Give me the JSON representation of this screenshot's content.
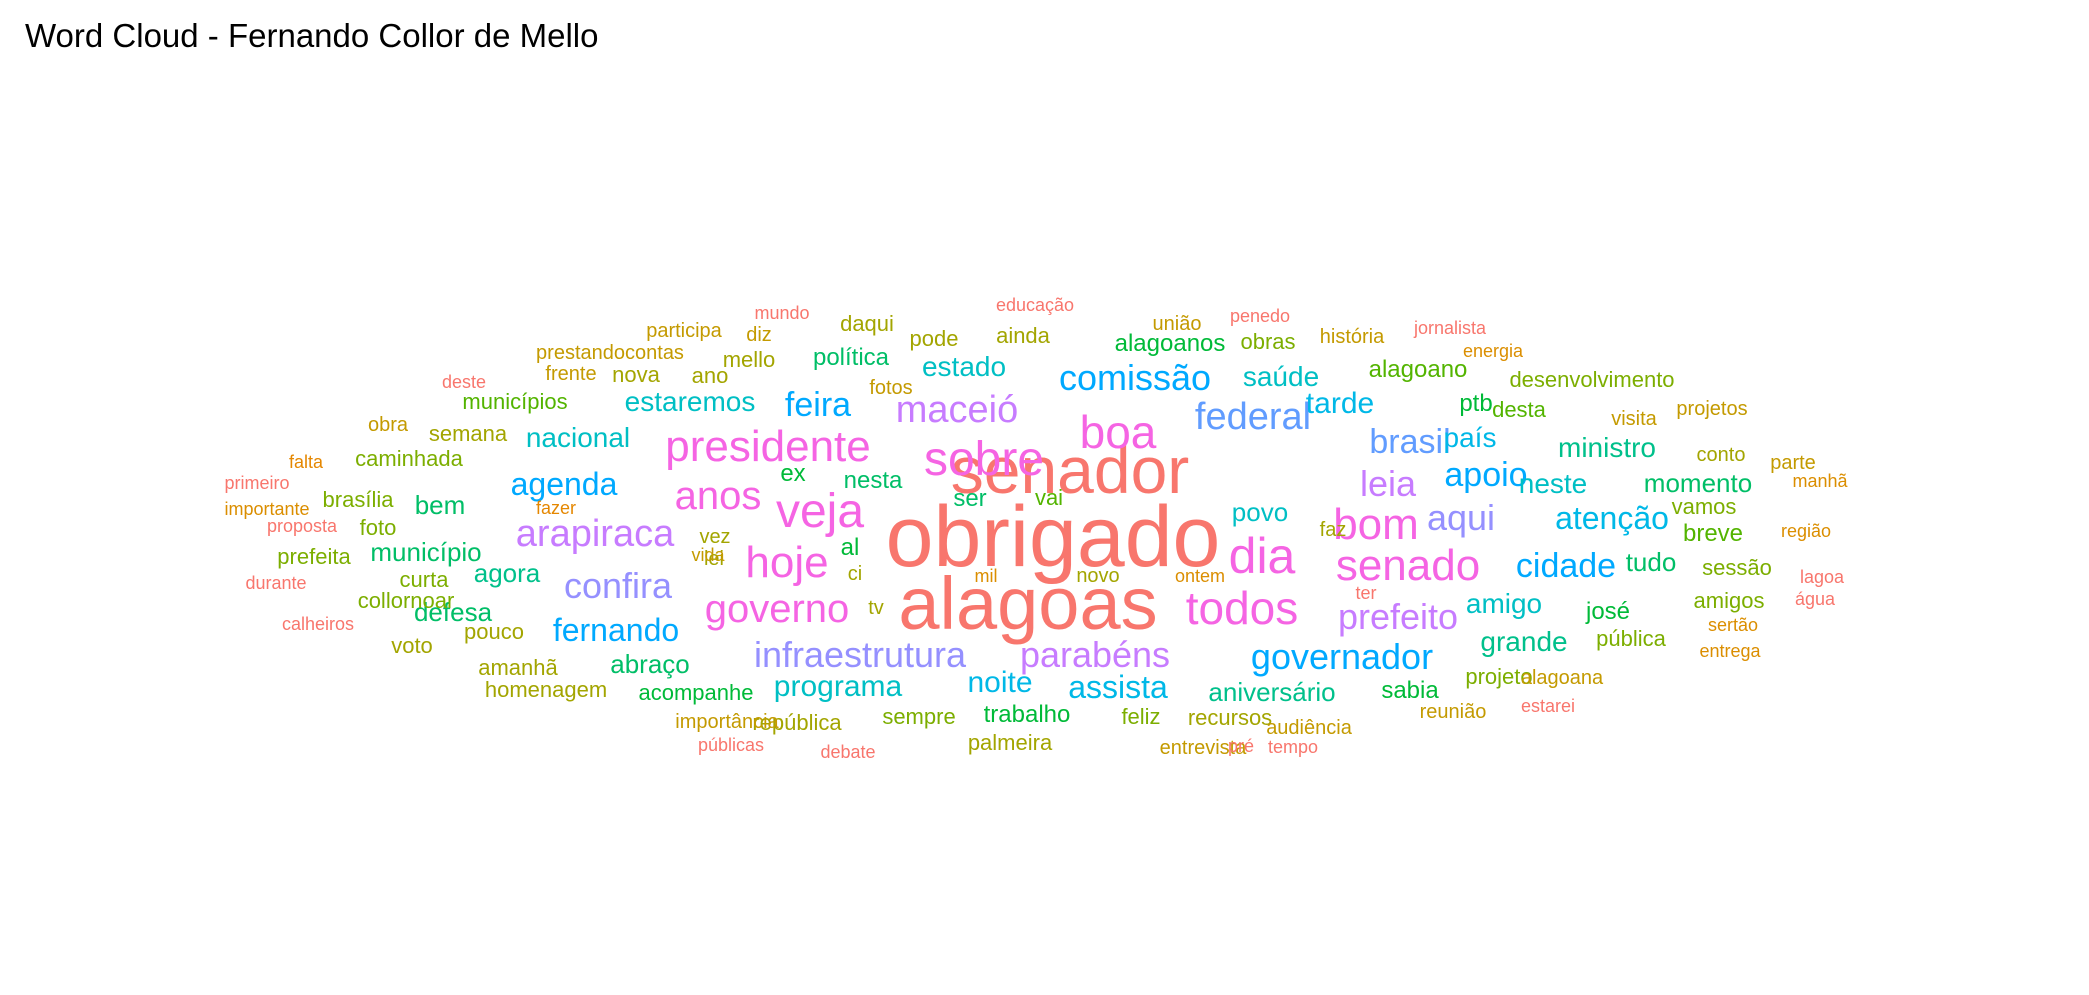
{
  "title": "Word Cloud - Fernando Collor de Mello",
  "words": [
    {
      "text": "obrigado",
      "color": "#F8766D"
    },
    {
      "text": "alagoas",
      "color": "#F8766D"
    },
    {
      "text": "senador",
      "color": "#F8766D"
    },
    {
      "text": "dia",
      "color": "#F564E3"
    },
    {
      "text": "veja",
      "color": "#F564E3"
    },
    {
      "text": "hoje",
      "color": "#F564E3"
    },
    {
      "text": "sobre",
      "color": "#F564E3"
    },
    {
      "text": "boa",
      "color": "#F564E3"
    },
    {
      "text": "senado",
      "color": "#F564E3"
    },
    {
      "text": "todos",
      "color": "#F564E3"
    },
    {
      "text": "presidente",
      "color": "#F564E3"
    },
    {
      "text": "bom",
      "color": "#F564E3"
    },
    {
      "text": "governo",
      "color": "#F564E3"
    },
    {
      "text": "anos",
      "color": "#F564E3"
    },
    {
      "text": "arapiraca",
      "color": "#C77CFF"
    },
    {
      "text": "parabéns",
      "color": "#C77CFF"
    },
    {
      "text": "maceió",
      "color": "#C77CFF"
    },
    {
      "text": "prefeito",
      "color": "#C77CFF"
    },
    {
      "text": "leia",
      "color": "#C77CFF"
    },
    {
      "text": "infraestrutura",
      "color": "#9590FF"
    },
    {
      "text": "confira",
      "color": "#9590FF"
    },
    {
      "text": "aqui",
      "color": "#9590FF"
    },
    {
      "text": "federal",
      "color": "#619CFF"
    },
    {
      "text": "brasil",
      "color": "#619CFF"
    },
    {
      "text": "governador",
      "color": "#00A9FF"
    },
    {
      "text": "comissão",
      "color": "#00A9FF"
    },
    {
      "text": "apoio",
      "color": "#00A9FF"
    },
    {
      "text": "cidade",
      "color": "#00A9FF"
    },
    {
      "text": "feira",
      "color": "#00A9FF"
    },
    {
      "text": "agenda",
      "color": "#00A9FF"
    },
    {
      "text": "fernando",
      "color": "#00A9FF"
    },
    {
      "text": "atenção",
      "color": "#00B8E7"
    },
    {
      "text": "tarde",
      "color": "#00B8E7"
    },
    {
      "text": "assista",
      "color": "#00B8E7"
    },
    {
      "text": "país",
      "color": "#00B8E7"
    },
    {
      "text": "noite",
      "color": "#00B8E7"
    },
    {
      "text": "programa",
      "color": "#00BFC4"
    },
    {
      "text": "amigo",
      "color": "#00BFC4"
    },
    {
      "text": "estado",
      "color": "#00BFC4"
    },
    {
      "text": "saúde",
      "color": "#00BFC4"
    },
    {
      "text": "estaremos",
      "color": "#00BFC4"
    },
    {
      "text": "nacional",
      "color": "#00BFC4"
    },
    {
      "text": "neste",
      "color": "#00BFC4"
    },
    {
      "text": "povo",
      "color": "#00BFC4"
    },
    {
      "text": "aniversário",
      "color": "#00C08B"
    },
    {
      "text": "grande",
      "color": "#00C08B"
    },
    {
      "text": "ministro",
      "color": "#00C08B"
    },
    {
      "text": "agora",
      "color": "#00C08B"
    },
    {
      "text": "município",
      "color": "#00BE67"
    },
    {
      "text": "bem",
      "color": "#00BE67"
    },
    {
      "text": "defesa",
      "color": "#00BE67"
    },
    {
      "text": "abraço",
      "color": "#00BE67"
    },
    {
      "text": "momento",
      "color": "#00BE67"
    },
    {
      "text": "tudo",
      "color": "#00BE67"
    },
    {
      "text": "nesta",
      "color": "#00BE67"
    },
    {
      "text": "política",
      "color": "#00BE67"
    },
    {
      "text": "ser",
      "color": "#00BE67"
    },
    {
      "text": "ptb",
      "color": "#00BA38"
    },
    {
      "text": "josé",
      "color": "#00BA38"
    },
    {
      "text": "al",
      "color": "#00BA38"
    },
    {
      "text": "ex",
      "color": "#00BA38"
    },
    {
      "text": "alagoanos",
      "color": "#00BA38"
    },
    {
      "text": "trabalho",
      "color": "#00BA38"
    },
    {
      "text": "acompanhe",
      "color": "#00BA38"
    },
    {
      "text": "sabia",
      "color": "#00BA38"
    },
    {
      "text": "breve",
      "color": "#53B400"
    },
    {
      "text": "alagoano",
      "color": "#53B400"
    },
    {
      "text": "desta",
      "color": "#53B400"
    },
    {
      "text": "vai",
      "color": "#53B400"
    },
    {
      "text": "municípios",
      "color": "#53B400"
    },
    {
      "text": "caminhada",
      "color": "#7CAE00"
    },
    {
      "text": "brasília",
      "color": "#7CAE00"
    },
    {
      "text": "foto",
      "color": "#7CAE00"
    },
    {
      "text": "curta",
      "color": "#7CAE00"
    },
    {
      "text": "collornoar",
      "color": "#7CAE00"
    },
    {
      "text": "pública",
      "color": "#7CAE00"
    },
    {
      "text": "sessão",
      "color": "#7CAE00"
    },
    {
      "text": "amigos",
      "color": "#7CAE00"
    },
    {
      "text": "vamos",
      "color": "#7CAE00"
    },
    {
      "text": "projeto",
      "color": "#7CAE00"
    },
    {
      "text": "desenvolvimento",
      "color": "#7CAE00"
    },
    {
      "text": "obras",
      "color": "#7CAE00"
    },
    {
      "text": "sempre",
      "color": "#7CAE00"
    },
    {
      "text": "feliz",
      "color": "#7CAE00"
    },
    {
      "text": "prefeita",
      "color": "#7CAE00"
    },
    {
      "text": "semana",
      "color": "#A3A500"
    },
    {
      "text": "ano",
      "color": "#A3A500"
    },
    {
      "text": "nova",
      "color": "#A3A500"
    },
    {
      "text": "mello",
      "color": "#A3A500"
    },
    {
      "text": "pode",
      "color": "#A3A500"
    },
    {
      "text": "ainda",
      "color": "#A3A500"
    },
    {
      "text": "daqui",
      "color": "#A3A500"
    },
    {
      "text": "pouco",
      "color": "#A3A500"
    },
    {
      "text": "voto",
      "color": "#A3A500"
    },
    {
      "text": "amanhã",
      "color": "#A3A500"
    },
    {
      "text": "homenagem",
      "color": "#A3A500"
    },
    {
      "text": "república",
      "color": "#A3A500"
    },
    {
      "text": "recursos",
      "color": "#A3A500"
    },
    {
      "text": "palmeira",
      "color": "#A3A500"
    },
    {
      "text": "novo",
      "color": "#A3A500"
    },
    {
      "text": "tv",
      "color": "#A3A500"
    },
    {
      "text": "ci",
      "color": "#A3A500"
    },
    {
      "text": "vez",
      "color": "#A3A500"
    },
    {
      "text": "lei",
      "color": "#A3A500"
    },
    {
      "text": "faz",
      "color": "#A3A500"
    },
    {
      "text": "conto",
      "color": "#A3A500"
    },
    {
      "text": "obra",
      "color": "#C49A00"
    },
    {
      "text": "frente",
      "color": "#C49A00"
    },
    {
      "text": "prestandocontas",
      "color": "#C49A00"
    },
    {
      "text": "participa",
      "color": "#C49A00"
    },
    {
      "text": "diz",
      "color": "#C49A00"
    },
    {
      "text": "fotos",
      "color": "#C49A00"
    },
    {
      "text": "união",
      "color": "#C49A00"
    },
    {
      "text": "história",
      "color": "#C49A00"
    },
    {
      "text": "visita",
      "color": "#C49A00"
    },
    {
      "text": "projetos",
      "color": "#C49A00"
    },
    {
      "text": "parte",
      "color": "#C49A00"
    },
    {
      "text": "importância",
      "color": "#C49A00"
    },
    {
      "text": "audiência",
      "color": "#C49A00"
    },
    {
      "text": "entrevista",
      "color": "#C49A00"
    },
    {
      "text": "reunião",
      "color": "#C49A00"
    },
    {
      "text": "alagoana",
      "color": "#C49A00"
    },
    {
      "text": "vida",
      "color": "#C49A00"
    },
    {
      "text": "mil",
      "color": "#DB8E00"
    },
    {
      "text": "ontem",
      "color": "#DB8E00"
    },
    {
      "text": "energia",
      "color": "#DB8E00"
    },
    {
      "text": "manhã",
      "color": "#DB8E00"
    },
    {
      "text": "região",
      "color": "#DB8E00"
    },
    {
      "text": "sertão",
      "color": "#DB8E00"
    },
    {
      "text": "entrega",
      "color": "#DB8E00"
    },
    {
      "text": "importante",
      "color": "#DB8E00"
    },
    {
      "text": "falta",
      "color": "#E58700"
    },
    {
      "text": "fazer",
      "color": "#E58700"
    },
    {
      "text": "mundo",
      "color": "#F8766D"
    },
    {
      "text": "educação",
      "color": "#F8766D"
    },
    {
      "text": "penedo",
      "color": "#F8766D"
    },
    {
      "text": "jornalista",
      "color": "#F8766D"
    },
    {
      "text": "deste",
      "color": "#F8766D"
    },
    {
      "text": "primeiro",
      "color": "#F8766D"
    },
    {
      "text": "proposta",
      "color": "#F8766D"
    },
    {
      "text": "durante",
      "color": "#F8766D"
    },
    {
      "text": "calheiros",
      "color": "#F8766D"
    },
    {
      "text": "públicas",
      "color": "#F8766D"
    },
    {
      "text": "debate",
      "color": "#F8766D"
    },
    {
      "text": "pré",
      "color": "#F8766D"
    },
    {
      "text": "tempo",
      "color": "#F8766D"
    },
    {
      "text": "estarei",
      "color": "#F8766D"
    },
    {
      "text": "lagoa",
      "color": "#F8766D"
    },
    {
      "text": "água",
      "color": "#F8766D"
    },
    {
      "text": "ter",
      "color": "#F8766D"
    }
  ]
}
